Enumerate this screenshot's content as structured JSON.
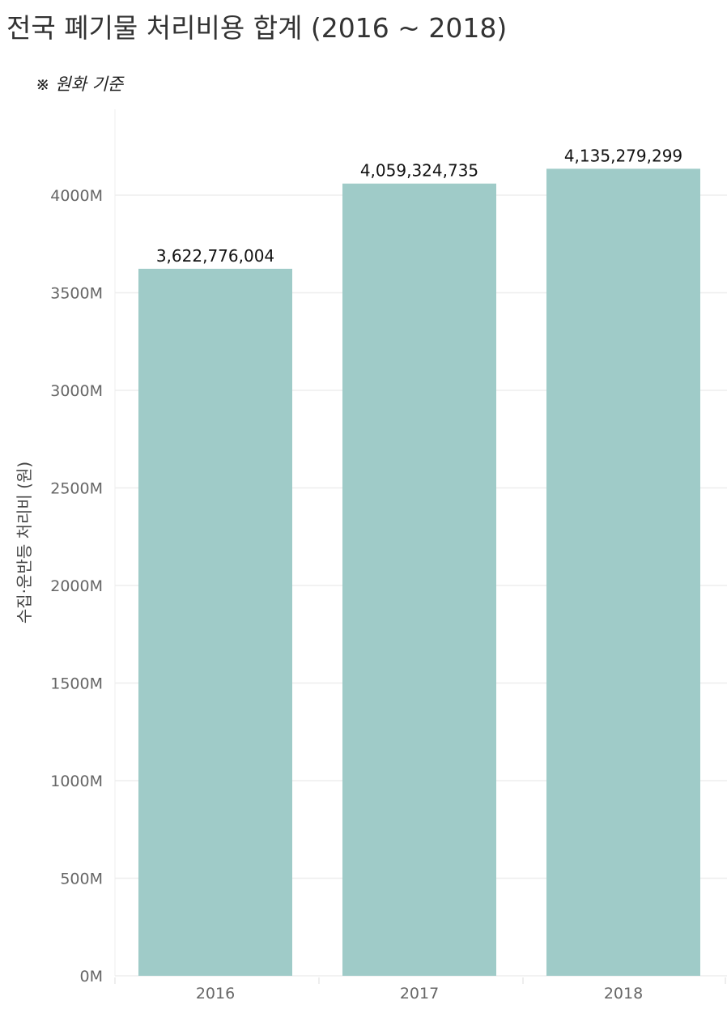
{
  "chart_data": {
    "type": "bar",
    "title": "전국 폐기물 처리비용 합계 (2016 ~ 2018)",
    "subtitle": "※ 원화 기준",
    "ylabel": "수집·운반등 처리비 (원)",
    "xlabel": "",
    "categories": [
      "2016",
      "2017",
      "2018"
    ],
    "values": [
      3622776004,
      4059324735,
      4135279299
    ],
    "data_labels": [
      "3,622,776,004",
      "4,059,324,735",
      "4,135,279,299"
    ],
    "ylim": [
      0,
      4400000000
    ],
    "yticks": [
      0,
      500000000,
      1000000000,
      1500000000,
      2000000000,
      2500000000,
      3000000000,
      3500000000,
      4000000000
    ],
    "ytick_labels": [
      "0M",
      "500M",
      "1000M",
      "1500M",
      "2000M",
      "2500M",
      "3000M",
      "3500M",
      "4000M"
    ],
    "grid": true,
    "bar_color": "#9fcbc8"
  }
}
